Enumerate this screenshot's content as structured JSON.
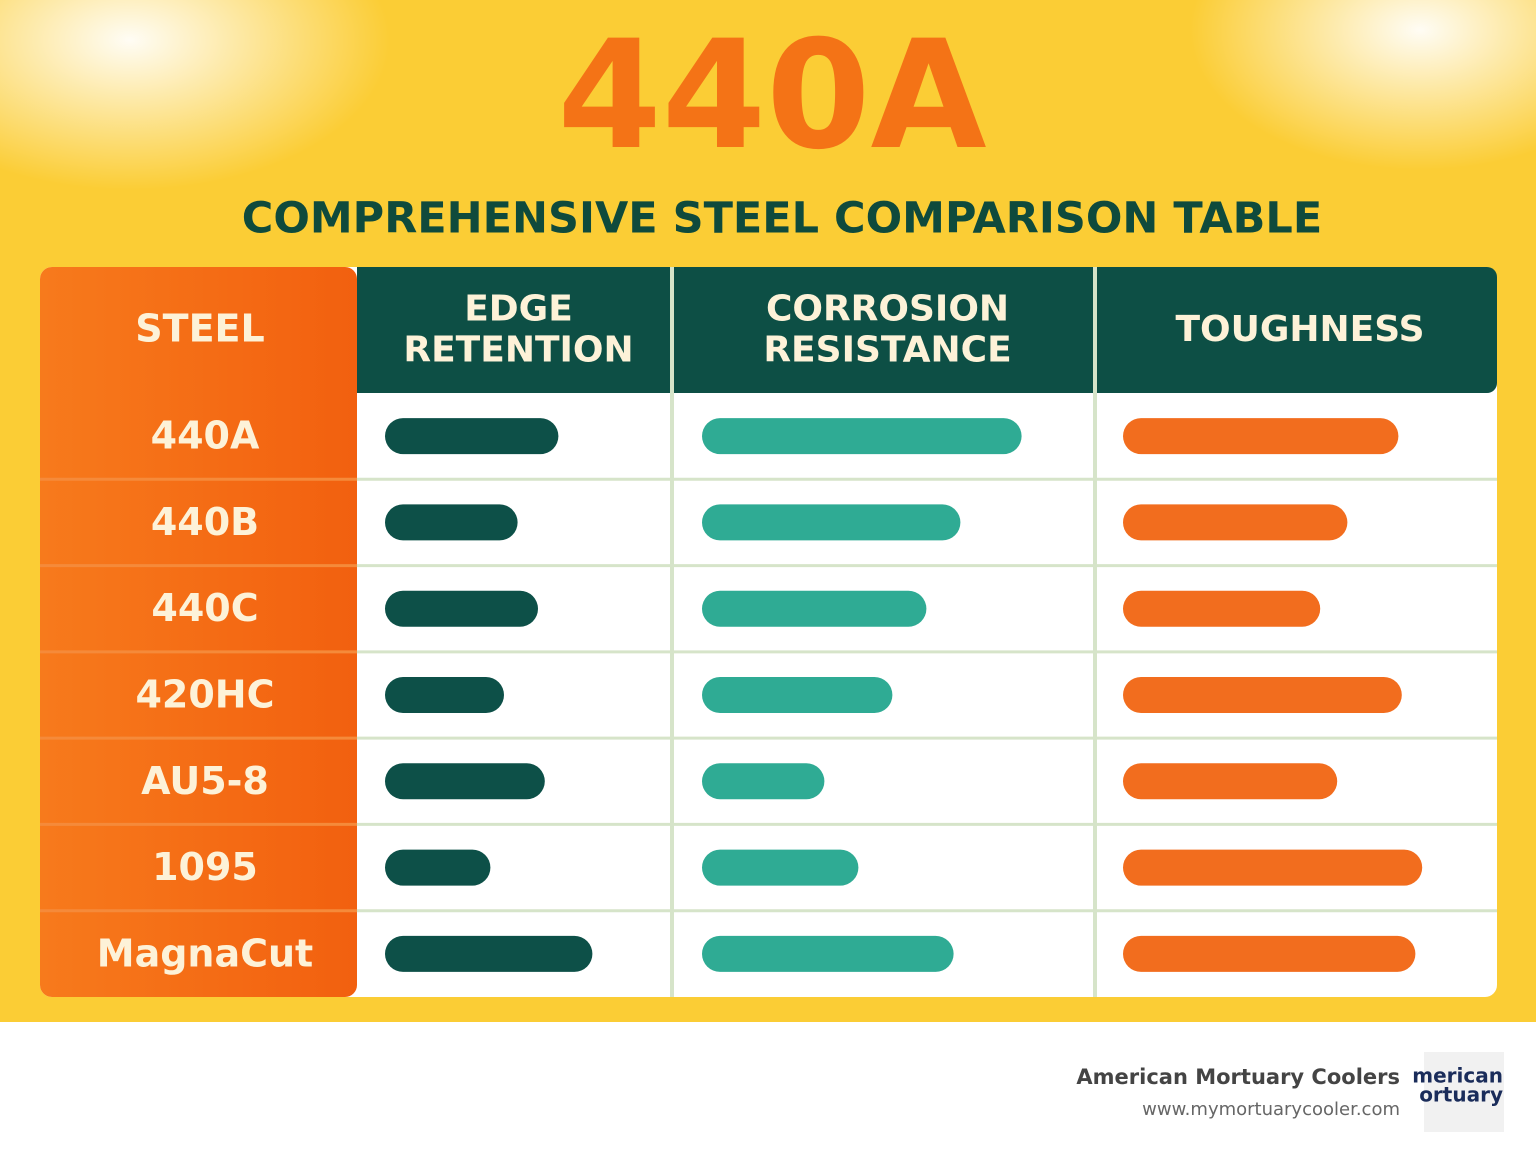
{
  "chart_data": {
    "type": "bar",
    "title": "440A",
    "subtitle": "COMPREHENSIVE STEEL COMPARISON TABLE",
    "category_label": "STEEL",
    "categories": [
      "440A",
      "440B",
      "440C",
      "420HC",
      "AU5-8",
      "1095",
      "MagnaCut"
    ],
    "xlim": [
      0,
      10
    ],
    "series": [
      {
        "name": "EDGE RETENTION",
        "color": "#0d5048",
        "values": [
          5.1,
          3.9,
          4.5,
          3.5,
          4.7,
          3.1,
          6.1
        ]
      },
      {
        "name": "CORROSION RESISTANCE",
        "color": "#2fab94",
        "values": [
          9.4,
          7.6,
          6.6,
          5.6,
          3.6,
          4.6,
          7.4
        ]
      },
      {
        "name": "TOUGHNESS",
        "color": "#f26d1e",
        "values": [
          8.1,
          6.6,
          5.8,
          8.2,
          6.3,
          8.8,
          8.6
        ]
      }
    ]
  },
  "footer": {
    "company": "American Mortuary Coolers",
    "url": "www.mymortuarycooler.com",
    "logo_lines": [
      "merican",
      "ortuary"
    ]
  }
}
